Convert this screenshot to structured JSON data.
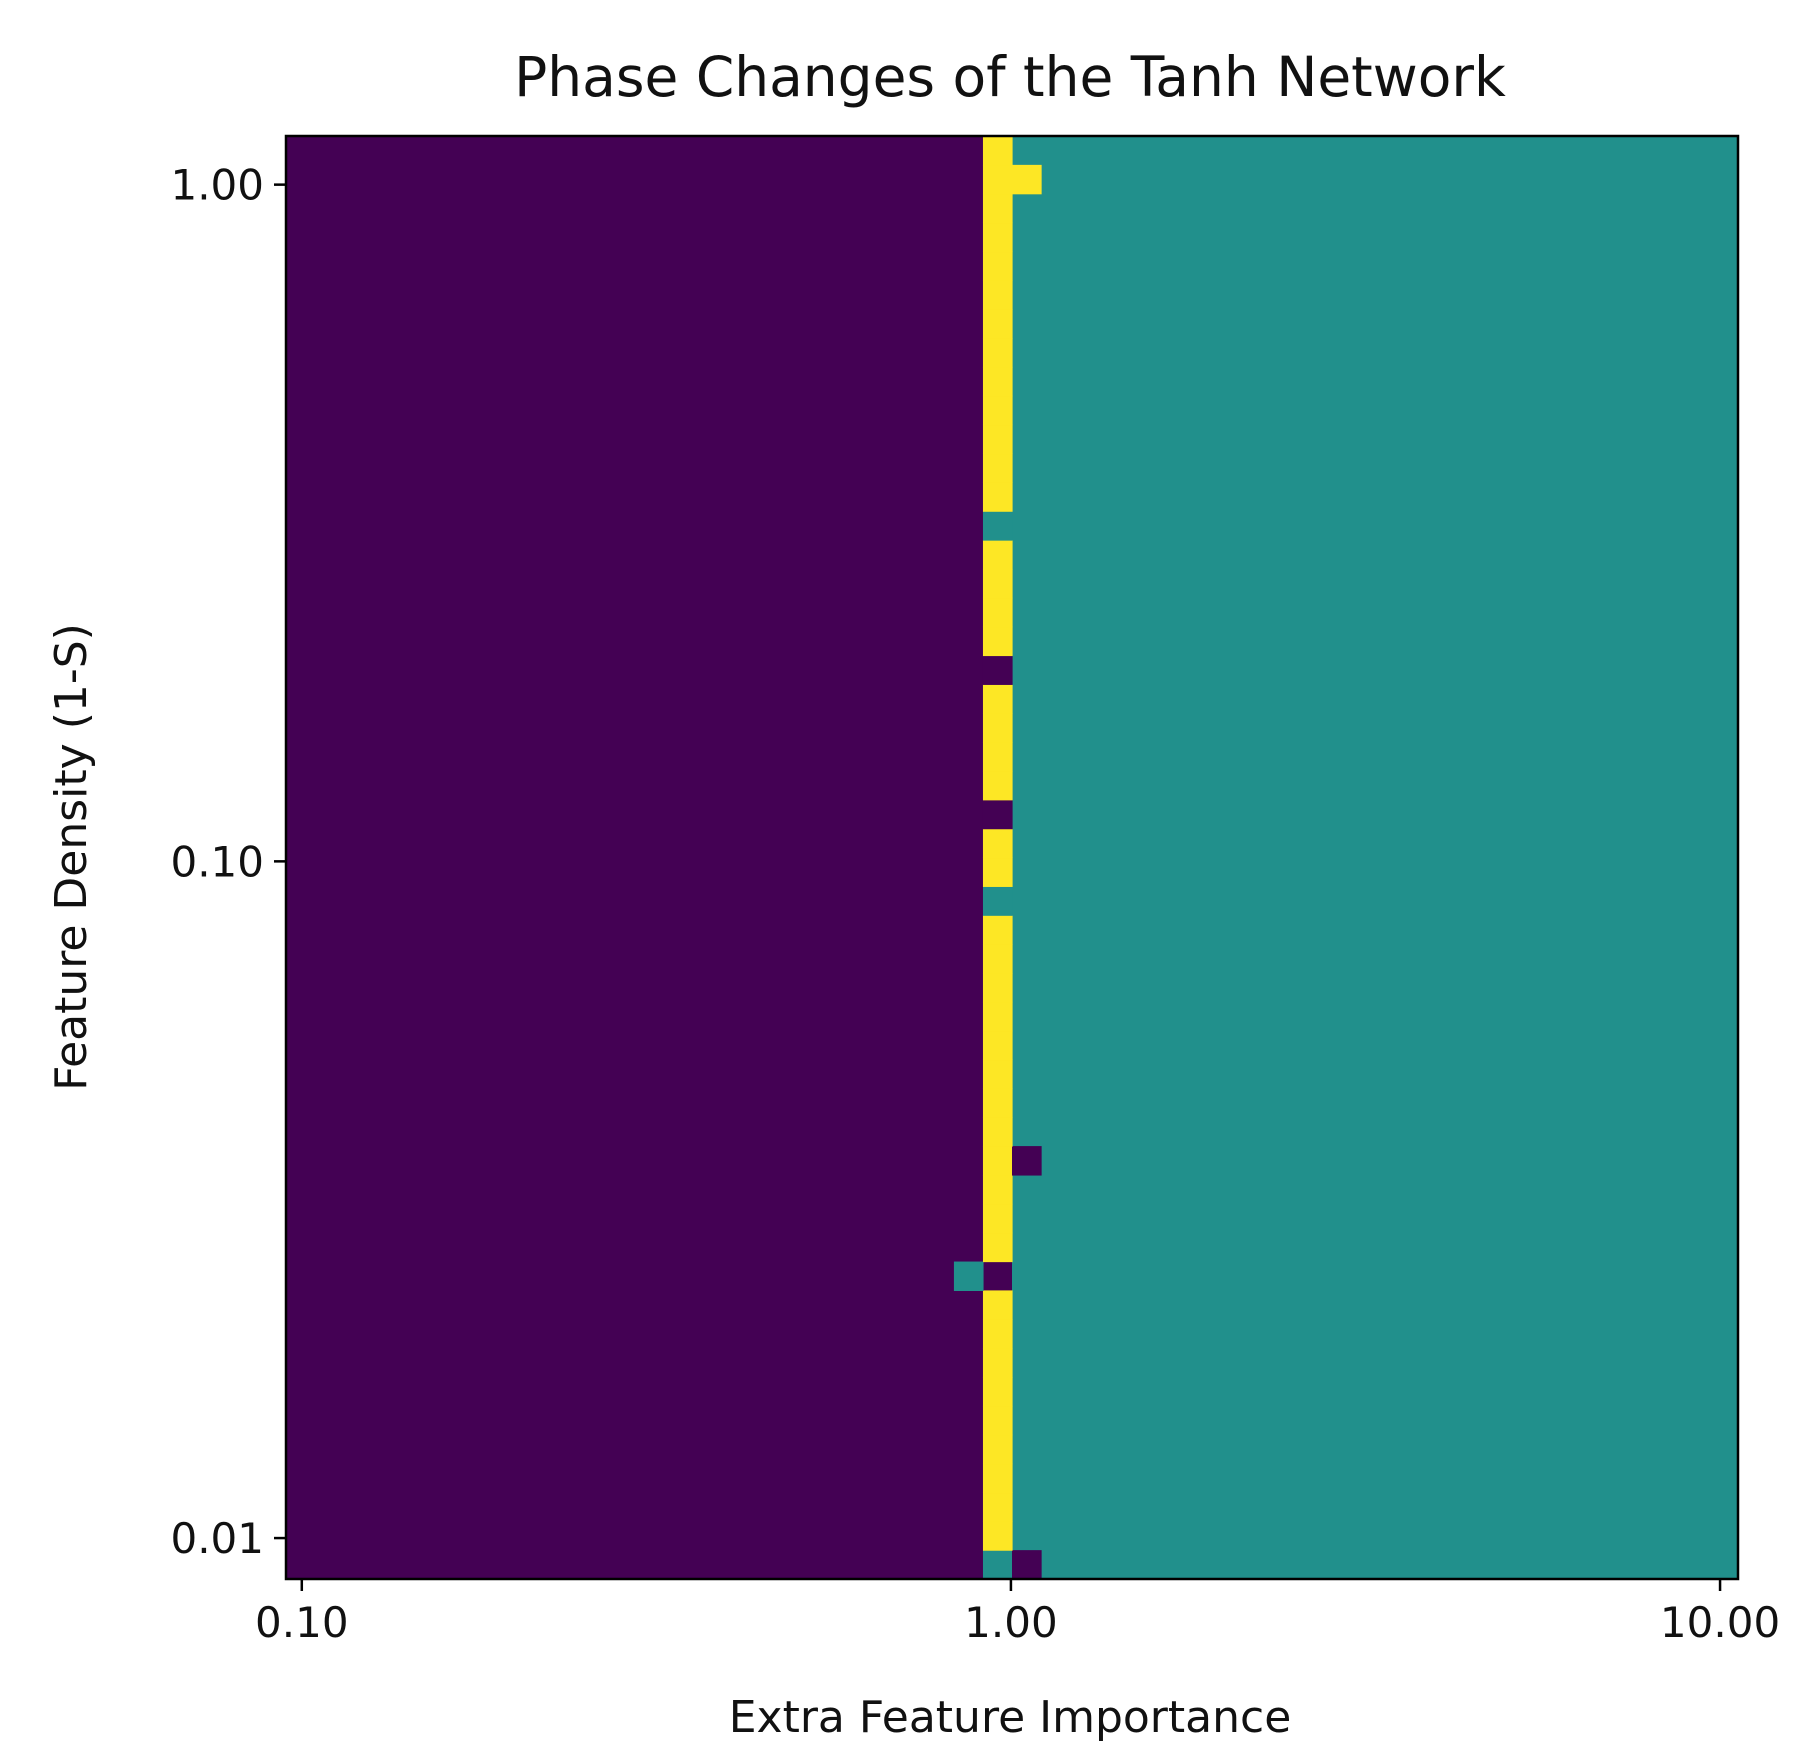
{
  "chart_data": {
    "type": "heatmap",
    "title": "Phase Changes of the Tanh Network",
    "xlabel": "Extra Feature Importance",
    "ylabel": "Feature Density (1-S)",
    "x_scale": "log",
    "y_scale": "log",
    "x_ticks": [
      {
        "value": 0.1,
        "label": "0.10"
      },
      {
        "value": 1.0,
        "label": "1.00"
      },
      {
        "value": 10.0,
        "label": "10.00"
      }
    ],
    "y_ticks": [
      {
        "value": 1.0,
        "label": "1.00"
      },
      {
        "value": 0.1,
        "label": "0.10"
      },
      {
        "value": 0.01,
        "label": "0.01"
      }
    ],
    "grid": false,
    "legend": "none",
    "colormap": "viridis",
    "categories": [
      {
        "id": "P",
        "color": "#440154"
      },
      {
        "id": "T",
        "color": "#21908c"
      },
      {
        "id": "Y",
        "color": "#fde725"
      }
    ],
    "extent": {
      "x": [
        0.095,
        10.6
      ],
      "y": [
        0.0087,
        1.18
      ]
    },
    "n_cols": 50,
    "n_rows": 50,
    "default_left": "P",
    "default_right": "T",
    "boundary_col": 25,
    "row_cells": [
      {
        "row": 0,
        "cells": [
          [
            24,
            "T"
          ],
          [
            25,
            "P"
          ]
        ]
      },
      {
        "row": 1,
        "cells": [
          [
            24,
            "Y"
          ]
        ]
      },
      {
        "row": 2,
        "cells": [
          [
            24,
            "Y"
          ]
        ]
      },
      {
        "row": 3,
        "cells": [
          [
            24,
            "Y"
          ]
        ]
      },
      {
        "row": 4,
        "cells": [
          [
            24,
            "Y"
          ]
        ]
      },
      {
        "row": 5,
        "cells": [
          [
            24,
            "Y"
          ]
        ]
      },
      {
        "row": 6,
        "cells": [
          [
            24,
            "Y"
          ]
        ]
      },
      {
        "row": 7,
        "cells": [
          [
            24,
            "Y"
          ]
        ]
      },
      {
        "row": 8,
        "cells": [
          [
            24,
            "Y"
          ]
        ]
      },
      {
        "row": 9,
        "cells": [
          [
            24,
            "Y"
          ]
        ]
      },
      {
        "row": 10,
        "cells": [
          [
            23,
            "T"
          ]
        ]
      },
      {
        "row": 11,
        "cells": [
          [
            24,
            "Y"
          ]
        ]
      },
      {
        "row": 12,
        "cells": [
          [
            24,
            "Y"
          ]
        ]
      },
      {
        "row": 13,
        "cells": [
          [
            24,
            "Y"
          ]
        ]
      },
      {
        "row": 14,
        "cells": [
          [
            24,
            "Y"
          ],
          [
            25,
            "P"
          ]
        ]
      },
      {
        "row": 15,
        "cells": [
          [
            24,
            "Y"
          ]
        ]
      },
      {
        "row": 16,
        "cells": [
          [
            24,
            "Y"
          ]
        ]
      },
      {
        "row": 17,
        "cells": [
          [
            24,
            "Y"
          ]
        ]
      },
      {
        "row": 18,
        "cells": [
          [
            24,
            "Y"
          ]
        ]
      },
      {
        "row": 19,
        "cells": [
          [
            24,
            "Y"
          ]
        ]
      },
      {
        "row": 20,
        "cells": [
          [
            24,
            "Y"
          ]
        ]
      },
      {
        "row": 21,
        "cells": [
          [
            24,
            "Y"
          ]
        ]
      },
      {
        "row": 22,
        "cells": [
          [
            24,
            "Y"
          ]
        ]
      },
      {
        "row": 23,
        "cells": [
          [
            24,
            "T"
          ]
        ]
      },
      {
        "row": 24,
        "cells": [
          [
            24,
            "Y"
          ]
        ]
      },
      {
        "row": 25,
        "cells": [
          [
            24,
            "Y"
          ]
        ]
      },
      {
        "row": 26,
        "cells": [
          [
            24,
            "P"
          ]
        ]
      },
      {
        "row": 27,
        "cells": [
          [
            24,
            "Y"
          ]
        ]
      },
      {
        "row": 28,
        "cells": [
          [
            24,
            "Y"
          ]
        ]
      },
      {
        "row": 29,
        "cells": [
          [
            24,
            "Y"
          ]
        ]
      },
      {
        "row": 30,
        "cells": [
          [
            24,
            "Y"
          ]
        ]
      },
      {
        "row": 31,
        "cells": [
          [
            24,
            "P"
          ]
        ]
      },
      {
        "row": 32,
        "cells": [
          [
            24,
            "Y"
          ]
        ]
      },
      {
        "row": 33,
        "cells": [
          [
            24,
            "Y"
          ]
        ]
      },
      {
        "row": 34,
        "cells": [
          [
            24,
            "Y"
          ]
        ]
      },
      {
        "row": 35,
        "cells": [
          [
            24,
            "Y"
          ]
        ]
      },
      {
        "row": 36,
        "cells": [
          [
            24,
            "T"
          ]
        ]
      },
      {
        "row": 37,
        "cells": [
          [
            24,
            "Y"
          ]
        ]
      },
      {
        "row": 38,
        "cells": [
          [
            24,
            "Y"
          ]
        ]
      },
      {
        "row": 39,
        "cells": [
          [
            24,
            "Y"
          ]
        ]
      },
      {
        "row": 40,
        "cells": [
          [
            24,
            "Y"
          ]
        ]
      },
      {
        "row": 41,
        "cells": [
          [
            24,
            "Y"
          ]
        ]
      },
      {
        "row": 42,
        "cells": [
          [
            24,
            "Y"
          ]
        ]
      },
      {
        "row": 43,
        "cells": [
          [
            24,
            "Y"
          ]
        ]
      },
      {
        "row": 44,
        "cells": [
          [
            24,
            "Y"
          ]
        ]
      },
      {
        "row": 45,
        "cells": [
          [
            24,
            "Y"
          ]
        ]
      },
      {
        "row": 46,
        "cells": [
          [
            24,
            "Y"
          ]
        ]
      },
      {
        "row": 47,
        "cells": [
          [
            24,
            "Y"
          ]
        ]
      },
      {
        "row": 48,
        "cells": [
          [
            24,
            "Y"
          ],
          [
            25,
            "Y"
          ]
        ]
      },
      {
        "row": 49,
        "cells": [
          [
            24,
            "Y"
          ]
        ]
      }
    ]
  }
}
